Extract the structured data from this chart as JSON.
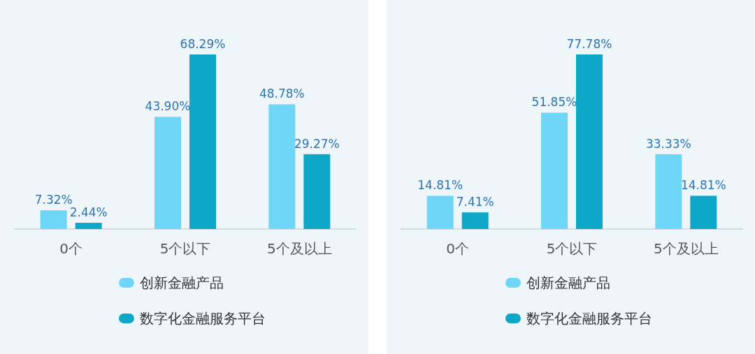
{
  "chart_data": [
    {
      "type": "bar",
      "categories": [
        "0个",
        "5个以下",
        "5个及以上"
      ],
      "legend": "bottom",
      "series": [
        {
          "name": "创新金融产品",
          "color": "#6fd6f7",
          "values": [
            7.32,
            43.9,
            48.78
          ],
          "value_labels": [
            "7.32%",
            "43.90%",
            "48.78%"
          ]
        },
        {
          "name": "数字化金融服务平台",
          "color": "#0fa7c8",
          "values": [
            2.44,
            68.29,
            29.27
          ],
          "value_labels": [
            "2.44%",
            "68.29%",
            "29.27%"
          ]
        }
      ]
    },
    {
      "type": "bar",
      "categories": [
        "0个",
        "5个以下",
        "5个及以上"
      ],
      "legend": "bottom",
      "series": [
        {
          "name": "创新金融产品",
          "color": "#6fd6f7",
          "values": [
            14.81,
            51.85,
            33.33
          ],
          "value_labels": [
            "14.81%",
            "51.85%",
            "33.33%"
          ]
        },
        {
          "name": "数字化金融服务平台",
          "color": "#0fa7c8",
          "values": [
            7.41,
            77.78,
            14.81
          ],
          "value_labels": [
            "7.41%",
            "77.78%",
            "14.81%"
          ]
        }
      ]
    }
  ]
}
